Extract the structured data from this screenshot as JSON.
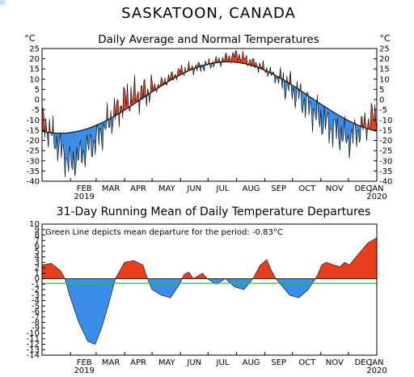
{
  "figure": {
    "title": "SASKATOON, CANADA"
  },
  "chart_data": [
    {
      "type": "area",
      "title": "Daily Average and Normal Temperatures",
      "ylabel_left": "°C",
      "ylabel_right": "°C",
      "ylim": [
        -40,
        25
      ],
      "yticks": [
        25,
        20,
        15,
        10,
        5,
        0,
        -5,
        -10,
        -15,
        -20,
        -25,
        -30,
        -35,
        -40
      ],
      "month_labels": [
        "FEB",
        "MAR",
        "APR",
        "MAY",
        "JUN",
        "JUL",
        "AUG",
        "SEP",
        "OCT",
        "NOV",
        "DEC",
        "JAN"
      ],
      "year_start": "2019",
      "year_end": "2020",
      "colors": {
        "above": "#e8401c",
        "below": "#3b8ee8",
        "normal": "#000000"
      },
      "normal_daily_by_month": [
        -16.5,
        -14.3,
        -8.0,
        3.8,
        11.5,
        16.0,
        18.5,
        17.5,
        11.3,
        4.2,
        -6.2,
        -13.7,
        -16.5
      ],
      "observed_daily_by_month": [
        -10,
        -32,
        -20,
        0,
        5,
        14,
        17,
        22,
        15,
        5,
        -10,
        -20,
        -7
      ]
    },
    {
      "type": "area",
      "title": "31-Day Running Mean of Daily Temperature Departures",
      "annotation": "Green Line depicts mean departure for the period: -0.83°C",
      "mean_departure": -0.83,
      "ylim": [
        -14,
        10
      ],
      "yticks": [
        10,
        9,
        8,
        7,
        6,
        5,
        4,
        3,
        2,
        1,
        0,
        -1,
        -2,
        -3,
        -4,
        -5,
        -6,
        -7,
        -8,
        -9,
        -10,
        -11,
        -12,
        -13,
        -14
      ],
      "month_labels": [
        "FEB",
        "MAR",
        "APR",
        "MAY",
        "JUN",
        "JUL",
        "AUG",
        "SEP",
        "OCT",
        "NOV",
        "DEC",
        "JAN"
      ],
      "year_start": "2019",
      "year_end": "2020",
      "colors": {
        "above": "#e8401c",
        "below": "#3b8ee8",
        "mean_line": "#2fbf3b"
      },
      "departure_days": [
        0,
        10,
        20,
        25,
        30,
        40,
        50,
        58,
        65,
        72,
        80,
        90,
        100,
        110,
        115,
        120,
        125,
        130,
        140,
        150,
        155,
        160,
        165,
        170,
        175,
        180,
        190,
        200,
        210,
        220,
        225,
        230,
        238,
        245,
        250,
        255,
        260,
        270,
        280,
        290,
        300,
        305,
        310,
        318,
        325,
        330,
        335,
        345,
        355,
        365
      ],
      "departure_values": [
        2.5,
        2.8,
        1.5,
        0,
        -3,
        -8,
        -11.5,
        -12,
        -9,
        -5,
        0,
        3,
        3.3,
        2.5,
        0,
        -2,
        -2.5,
        -3,
        -3.5,
        -1,
        0.8,
        1.2,
        0,
        0.5,
        1,
        0,
        -1,
        0,
        -1.5,
        -2,
        -1,
        0,
        2.5,
        3.5,
        1.5,
        0,
        -1,
        -3,
        -3.5,
        -2,
        0.5,
        2.5,
        3,
        2.5,
        2.2,
        3,
        2.5,
        4.5,
        6.5,
        7.5
      ]
    }
  ]
}
